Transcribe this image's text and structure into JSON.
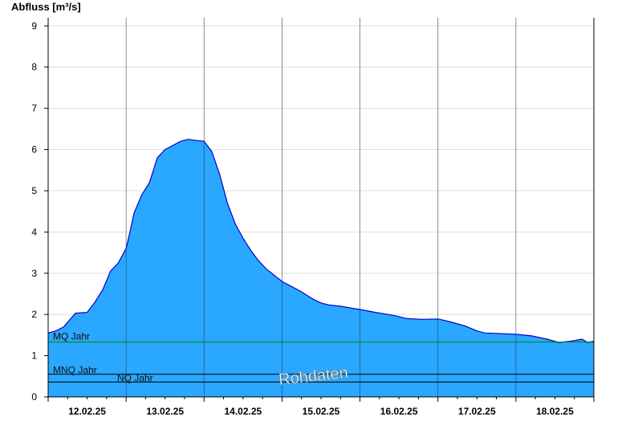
{
  "chart_data": {
    "type": "area",
    "ylabel": "Abfluss [m³/s]",
    "ylim": [
      0,
      9.2
    ],
    "yticks": [
      0,
      1,
      2,
      3,
      4,
      5,
      6,
      7,
      8,
      9
    ],
    "xlim": [
      0,
      7
    ],
    "x_categories": [
      "12.02.25",
      "13.02.25",
      "14.02.25",
      "15.02.25",
      "16.02.25",
      "17.02.25",
      "18.02.25"
    ],
    "grid": true,
    "colors": {
      "area_fill": "#2aa7ff",
      "area_line": "#0000cc",
      "mq_line": "#008800",
      "mnq_line": "#000000",
      "nq_line": "#000000",
      "grid": "#dddddd"
    },
    "series": [
      {
        "values": [
          [
            0.0,
            1.55
          ],
          [
            0.1,
            1.6
          ],
          [
            0.2,
            1.7
          ],
          [
            0.35,
            2.03
          ],
          [
            0.5,
            2.05
          ],
          [
            0.6,
            2.3
          ],
          [
            0.7,
            2.6
          ],
          [
            0.8,
            3.05
          ],
          [
            0.9,
            3.25
          ],
          [
            1.0,
            3.6
          ],
          [
            1.05,
            4.0
          ],
          [
            1.1,
            4.45
          ],
          [
            1.2,
            4.9
          ],
          [
            1.3,
            5.2
          ],
          [
            1.4,
            5.8
          ],
          [
            1.5,
            6.0
          ],
          [
            1.6,
            6.1
          ],
          [
            1.7,
            6.2
          ],
          [
            1.8,
            6.25
          ],
          [
            1.9,
            6.22
          ],
          [
            2.0,
            6.2
          ],
          [
            2.1,
            5.95
          ],
          [
            2.2,
            5.4
          ],
          [
            2.3,
            4.7
          ],
          [
            2.4,
            4.2
          ],
          [
            2.5,
            3.85
          ],
          [
            2.6,
            3.55
          ],
          [
            2.7,
            3.3
          ],
          [
            2.8,
            3.1
          ],
          [
            2.9,
            2.95
          ],
          [
            3.0,
            2.8
          ],
          [
            3.1,
            2.7
          ],
          [
            3.25,
            2.55
          ],
          [
            3.4,
            2.37
          ],
          [
            3.5,
            2.28
          ],
          [
            3.6,
            2.23
          ],
          [
            3.75,
            2.2
          ],
          [
            3.9,
            2.15
          ],
          [
            4.0,
            2.12
          ],
          [
            4.2,
            2.05
          ],
          [
            4.45,
            1.97
          ],
          [
            4.6,
            1.9
          ],
          [
            4.8,
            1.88
          ],
          [
            5.0,
            1.89
          ],
          [
            5.1,
            1.85
          ],
          [
            5.2,
            1.8
          ],
          [
            5.35,
            1.72
          ],
          [
            5.5,
            1.6
          ],
          [
            5.6,
            1.55
          ],
          [
            5.75,
            1.54
          ],
          [
            6.0,
            1.52
          ],
          [
            6.2,
            1.48
          ],
          [
            6.4,
            1.4
          ],
          [
            6.55,
            1.32
          ],
          [
            6.7,
            1.35
          ],
          [
            6.85,
            1.4
          ],
          [
            6.92,
            1.32
          ],
          [
            7.0,
            1.35
          ]
        ]
      }
    ],
    "reference_lines": [
      {
        "label": "MQ Jahr",
        "value": 1.33
      },
      {
        "label": "MNQ Jahr",
        "value": 0.55
      },
      {
        "label": "NQ Jahr",
        "value": 0.36
      }
    ],
    "watermark": "Rohdaten"
  }
}
